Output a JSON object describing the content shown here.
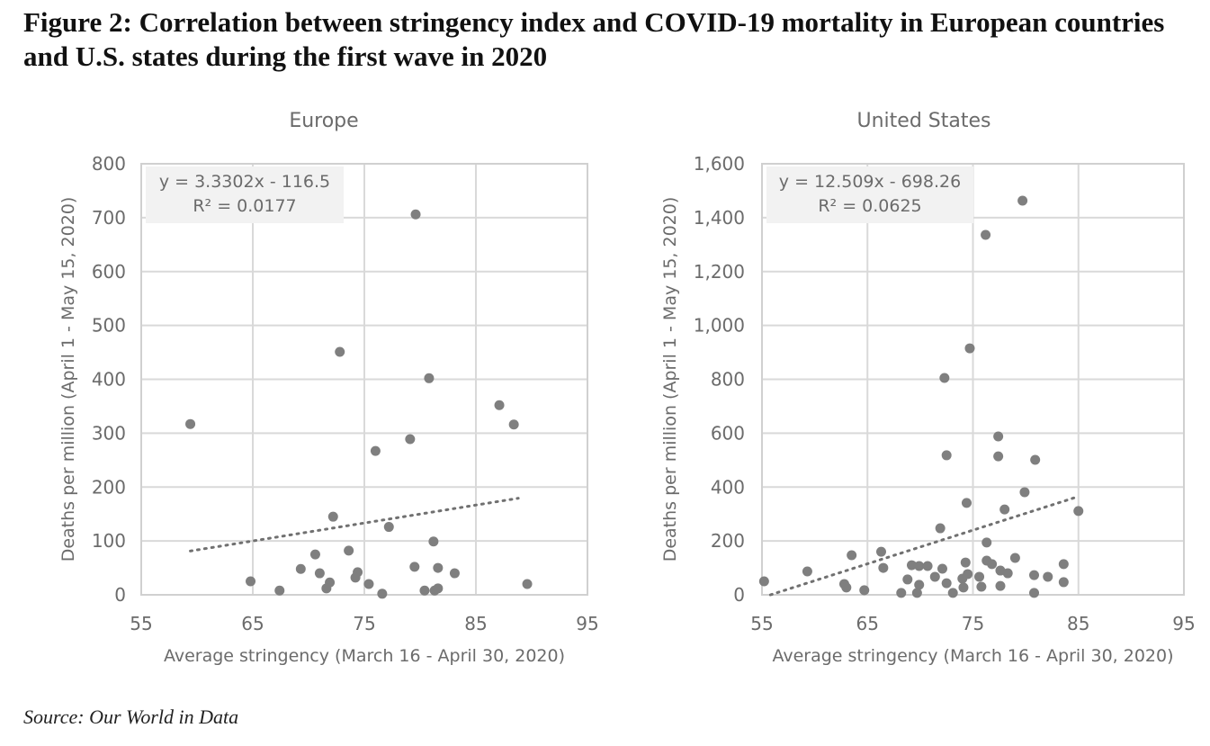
{
  "figure": {
    "title": "Figure 2: Correlation between stringency index and COVID-19 mortality in European countries and U.S. states during the first wave in 2020",
    "source": "Source: Our World in Data"
  },
  "chart_data": [
    {
      "type": "scatter",
      "title": "Europe",
      "xlabel": "Average stringency (March 16 - April 30, 2020)",
      "ylabel": "Deaths per million (April 1 - May 15, 2020)",
      "xlim": [
        55,
        95
      ],
      "ylim": [
        0,
        800
      ],
      "xticks": [
        55,
        65,
        75,
        85,
        95
      ],
      "yticks": [
        0,
        100,
        200,
        300,
        400,
        500,
        600,
        700,
        800
      ],
      "ytick_labels": [
        "0",
        "100",
        "200",
        "300",
        "400",
        "500",
        "600",
        "700",
        "800"
      ],
      "grid": true,
      "trendline": {
        "type": "linear",
        "slope": 3.3302,
        "intercept": -116.5,
        "x_range": [
          59.4,
          88.8
        ],
        "equation_label": "y = 3.3302x - 116.5",
        "r2_label": "R² = 0.0177",
        "label_position": "top-left"
      },
      "points": [
        [
          59.4,
          317
        ],
        [
          79.6,
          706
        ],
        [
          72.8,
          451
        ],
        [
          80.8,
          402
        ],
        [
          87.1,
          352
        ],
        [
          88.4,
          316
        ],
        [
          76.0,
          267
        ],
        [
          79.1,
          289
        ],
        [
          72.2,
          145
        ],
        [
          77.2,
          126
        ],
        [
          81.2,
          99
        ],
        [
          70.6,
          75
        ],
        [
          73.6,
          82
        ],
        [
          69.3,
          48
        ],
        [
          71.0,
          40
        ],
        [
          74.4,
          42
        ],
        [
          74.2,
          32
        ],
        [
          64.8,
          25
        ],
        [
          71.9,
          23
        ],
        [
          71.6,
          12
        ],
        [
          67.4,
          8
        ],
        [
          75.4,
          20
        ],
        [
          76.6,
          2
        ],
        [
          79.5,
          52
        ],
        [
          81.6,
          50
        ],
        [
          83.1,
          40
        ],
        [
          80.4,
          8
        ],
        [
          81.3,
          8
        ],
        [
          81.6,
          12
        ],
        [
          89.6,
          20
        ]
      ]
    },
    {
      "type": "scatter",
      "title": "United States",
      "xlabel": "Average stringency (March 16 - April 30, 2020)",
      "ylabel": "Deaths per million (April 1 - May 15, 2020)",
      "xlim": [
        55,
        95
      ],
      "ylim": [
        0,
        1600
      ],
      "xticks": [
        55,
        65,
        75,
        85,
        95
      ],
      "yticks": [
        0,
        200,
        400,
        600,
        800,
        1000,
        1200,
        1400,
        1600
      ],
      "ytick_labels": [
        "0",
        "200",
        "400",
        "600",
        "800",
        "1,000",
        "1,200",
        "1,400",
        "1,600"
      ],
      "grid": true,
      "trendline": {
        "type": "linear",
        "slope": 12.509,
        "intercept": -698.26,
        "x_range": [
          55.8,
          85.0
        ],
        "equation_label": "y = 12.509x - 698.26",
        "r2_label": "R² = 0.0625",
        "label_position": "top-left"
      },
      "points": [
        [
          79.7,
          1463
        ],
        [
          76.2,
          1336
        ],
        [
          74.7,
          915
        ],
        [
          72.3,
          805
        ],
        [
          77.4,
          588
        ],
        [
          72.5,
          518
        ],
        [
          77.4,
          514
        ],
        [
          80.9,
          501
        ],
        [
          79.9,
          381
        ],
        [
          74.4,
          341
        ],
        [
          78.0,
          317
        ],
        [
          85.0,
          311
        ],
        [
          71.9,
          247
        ],
        [
          76.3,
          194
        ],
        [
          55.2,
          50
        ],
        [
          59.3,
          87
        ],
        [
          63.5,
          147
        ],
        [
          62.8,
          40
        ],
        [
          63.0,
          27
        ],
        [
          64.7,
          17
        ],
        [
          66.3,
          160
        ],
        [
          66.5,
          100
        ],
        [
          68.2,
          7
        ],
        [
          68.8,
          57
        ],
        [
          69.2,
          110
        ],
        [
          69.9,
          107
        ],
        [
          70.7,
          107
        ],
        [
          72.1,
          97
        ],
        [
          71.4,
          67
        ],
        [
          69.9,
          37
        ],
        [
          69.7,
          7
        ],
        [
          72.5,
          43
        ],
        [
          73.1,
          7
        ],
        [
          74.3,
          120
        ],
        [
          74.5,
          77
        ],
        [
          74.0,
          60
        ],
        [
          74.1,
          27
        ],
        [
          75.6,
          67
        ],
        [
          75.8,
          30
        ],
        [
          76.3,
          127
        ],
        [
          76.8,
          114
        ],
        [
          77.6,
          90
        ],
        [
          78.3,
          80
        ],
        [
          77.6,
          33
        ],
        [
          79.0,
          137
        ],
        [
          80.8,
          73
        ],
        [
          80.8,
          7
        ],
        [
          82.1,
          67
        ],
        [
          83.6,
          114
        ],
        [
          83.6,
          47
        ]
      ]
    }
  ]
}
